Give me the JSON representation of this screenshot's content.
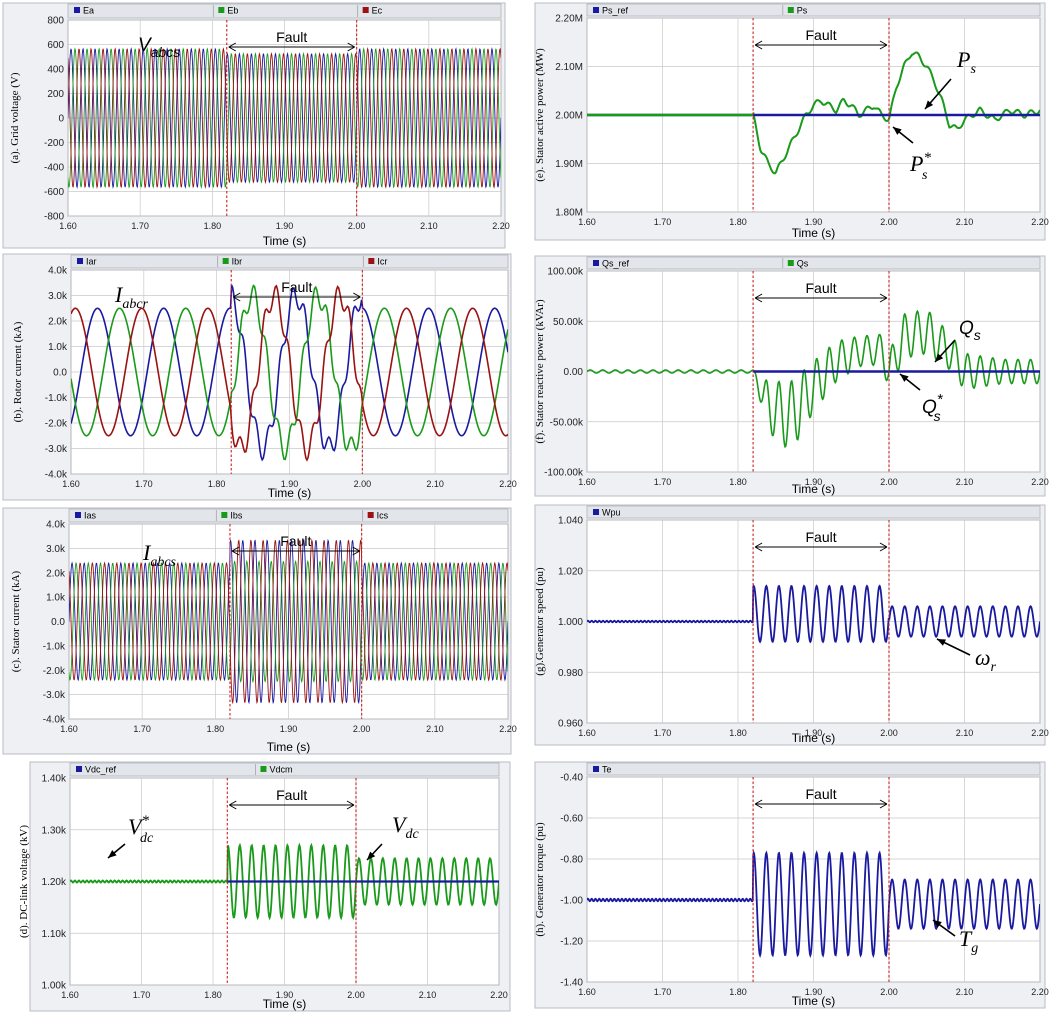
{
  "colors": {
    "blue": "#1a1aa0",
    "green": "#1a9a1a",
    "red": "#9a1212",
    "fault_line": "#cc2222",
    "grid": "#c8c8c8"
  },
  "common": {
    "fault_label": "Fault",
    "fault_start": 1.82,
    "fault_end": 2.0
  },
  "chart_data": [
    {
      "id": "a",
      "type": "line",
      "ylabel": "(a). Grid voltage (V)",
      "xlabel": "Time (s)",
      "legend": [
        "Ea",
        "Eb",
        "Ec"
      ],
      "ylim": [
        -800,
        800
      ],
      "yticks": [
        -800,
        -600,
        -400,
        -200,
        0,
        200,
        400,
        600,
        800
      ],
      "yticklabels": [
        "-800",
        "-600",
        "-400",
        "-200",
        "0",
        "200",
        "400",
        "600",
        "800"
      ],
      "xlim": [
        1.6,
        2.2
      ],
      "xticklabels": [
        "1.60",
        "1.70",
        "1.80",
        "1.90",
        "2.00",
        "2.10",
        "2.20"
      ],
      "fault": {
        "x1": 1.82,
        "x2": 2.0
      },
      "annotations": [
        {
          "main": "V",
          "sub": "abcs",
          "sup": ""
        }
      ],
      "series": [
        {
          "name": "Ea",
          "amplitude": 565,
          "freq_hz": 60,
          "phase_deg": 0
        },
        {
          "name": "Eb",
          "amplitude": 565,
          "freq_hz": 60,
          "phase_deg": -120
        },
        {
          "name": "Ec",
          "amplitude": 565,
          "freq_hz": 60,
          "phase_deg": 120
        }
      ],
      "fault_amplitude": 525
    },
    {
      "id": "b",
      "type": "line",
      "ylabel": "(b). Rotor current (kA)",
      "xlabel": "Time (s)",
      "legend": [
        "Iar",
        "Ibr",
        "Icr"
      ],
      "ylim": [
        -4,
        4
      ],
      "yticks": [
        -4,
        -3,
        -2,
        -1,
        0,
        1,
        2,
        3,
        4
      ],
      "yticklabels": [
        "-4.0k",
        "-3.0k",
        "-2.0k",
        "-1.0k",
        "0.0",
        "1.0k",
        "2.0k",
        "3.0k",
        "4.0k"
      ],
      "xlim": [
        1.6,
        2.2
      ],
      "xticklabels": [
        "1.60",
        "1.70",
        "1.80",
        "1.90",
        "2.00",
        "2.10",
        "2.20"
      ],
      "fault": {
        "x1": 1.82,
        "x2": 2.0
      },
      "annotations": [
        {
          "main": "I",
          "sub": "abcr",
          "sup": ""
        }
      ],
      "series": [
        {
          "name": "Iar",
          "amplitude": 2.5,
          "freq_hz": 11,
          "phase_deg": 90
        },
        {
          "name": "Ibr",
          "amplitude": 2.5,
          "freq_hz": 11,
          "phase_deg": -30
        },
        {
          "name": "Icr",
          "amplitude": 2.5,
          "freq_hz": 11,
          "phase_deg": 210
        }
      ],
      "fault_amplitude": 3.0
    },
    {
      "id": "c",
      "type": "line",
      "ylabel": "(c). Stator current (kA)",
      "xlabel": "Time (s)",
      "legend": [
        "Ias",
        "Ibs",
        "Ics"
      ],
      "ylim": [
        -4,
        4
      ],
      "yticks": [
        -4,
        -3,
        -2,
        -1,
        0,
        1,
        2,
        3,
        4
      ],
      "yticklabels": [
        "-4.0k",
        "-3.0k",
        "-2.0k",
        "-1.0k",
        "0.0",
        "1.0k",
        "2.0k",
        "3.0k",
        "4.0k"
      ],
      "xlim": [
        1.6,
        2.2
      ],
      "xticklabels": [
        "1.60",
        "1.70",
        "1.80",
        "1.90",
        "2.00",
        "2.10",
        "2.20"
      ],
      "fault": {
        "x1": 1.82,
        "x2": 2.0
      },
      "annotations": [
        {
          "main": "I",
          "sub": "abcs",
          "sup": ""
        }
      ],
      "series": [
        {
          "name": "Ias",
          "amplitude": 2.4,
          "freq_hz": 60,
          "phase_deg": 0
        },
        {
          "name": "Ibs",
          "amplitude": 2.4,
          "freq_hz": 60,
          "phase_deg": -120
        },
        {
          "name": "Ics",
          "amplitude": 2.4,
          "freq_hz": 60,
          "phase_deg": 120
        }
      ],
      "fault_amplitude": 2.9
    },
    {
      "id": "d",
      "type": "line",
      "ylabel": "(d). DC-link voltage (kV)",
      "xlabel": "Time (s)",
      "legend": [
        "Vdc_ref",
        "Vdcm"
      ],
      "ylim": [
        1.0,
        1.4
      ],
      "yticks": [
        1.0,
        1.1,
        1.2,
        1.3,
        1.4
      ],
      "yticklabels": [
        "1.00k",
        "1.10k",
        "1.20k",
        "1.30k",
        "1.40k"
      ],
      "xlim": [
        1.6,
        2.2
      ],
      "xticklabels": [
        "1.60",
        "1.70",
        "1.80",
        "1.90",
        "2.00",
        "2.10",
        "2.20"
      ],
      "fault": {
        "x1": 1.82,
        "x2": 2.0
      },
      "annotations": [
        {
          "main": "V",
          "sub": "dc",
          "sup": "*"
        },
        {
          "main": "V",
          "sub": "dc",
          "sup": ""
        }
      ],
      "reference": 1.2,
      "oscillation": {
        "freq_hz": 60,
        "fault_amp": 0.07,
        "post_amp": 0.045
      }
    },
    {
      "id": "e",
      "type": "line",
      "ylabel": "(e). Stator active power (MW)",
      "xlabel": "Time (s)",
      "legend": [
        "Ps_ref",
        "Ps"
      ],
      "ylim": [
        1.8,
        2.2
      ],
      "yticks": [
        1.8,
        1.9,
        2.0,
        2.1,
        2.2
      ],
      "yticklabels": [
        "1.80M",
        "1.90M",
        "2.00M",
        "2.10M",
        "2.20M"
      ],
      "xlim": [
        1.6,
        2.2
      ],
      "xticklabels": [
        "1.60",
        "1.70",
        "1.80",
        "1.90",
        "2.00",
        "2.10",
        "2.20"
      ],
      "fault": {
        "x1": 1.82,
        "x2": 2.0
      },
      "annotations": [
        {
          "main": "P",
          "sub": "s",
          "sup": ""
        },
        {
          "main": "P",
          "sub": "s",
          "sup": "*"
        }
      ],
      "reference": 2.0,
      "measured": {
        "x": [
          1.6,
          1.82,
          1.83,
          1.84,
          1.85,
          1.86,
          1.87,
          1.88,
          1.89,
          1.9,
          1.91,
          1.92,
          1.93,
          1.94,
          1.95,
          1.96,
          1.97,
          1.98,
          1.99,
          2.0,
          2.01,
          2.02,
          2.03,
          2.04,
          2.05,
          2.06,
          2.07,
          2.08,
          2.09,
          2.1,
          2.12,
          2.14,
          2.16,
          2.18,
          2.2
        ],
        "y": [
          2.0,
          2.0,
          1.93,
          1.9,
          1.88,
          1.91,
          1.94,
          1.97,
          2.0,
          2.02,
          2.03,
          2.02,
          2.01,
          2.03,
          2.02,
          2.0,
          2.01,
          2.02,
          2.0,
          1.99,
          2.06,
          2.1,
          2.13,
          2.12,
          2.1,
          2.07,
          2.03,
          1.98,
          1.97,
          1.99,
          2.01,
          1.99,
          2.01,
          2.0,
          2.01
        ]
      }
    },
    {
      "id": "f",
      "type": "line",
      "ylabel": "(f). Stator reactive power (kVAr)",
      "xlabel": "Time (s)",
      "legend": [
        "Qs_ref",
        "Qs"
      ],
      "ylim": [
        -100,
        100
      ],
      "yticks": [
        -100,
        -50,
        0,
        50,
        100
      ],
      "yticklabels": [
        "-100.00k",
        "-50.00k",
        "0.00",
        "50.00k",
        "100.00k"
      ],
      "xlim": [
        1.6,
        2.2
      ],
      "xticklabels": [
        "1.60",
        "1.70",
        "1.80",
        "1.90",
        "2.00",
        "2.10",
        "2.20"
      ],
      "fault": {
        "x1": 1.82,
        "x2": 2.0
      },
      "annotations": [
        {
          "main": "Q",
          "sub": "s",
          "sup": ""
        },
        {
          "main": "Q",
          "sub": "s",
          "sup": "*"
        }
      ],
      "reference": 0,
      "envelope": {
        "x": [
          1.6,
          1.82,
          1.84,
          1.87,
          1.9,
          1.93,
          1.96,
          1.99,
          2.0,
          2.02,
          2.05,
          2.08,
          2.1,
          2.15,
          2.2
        ],
        "center": [
          0,
          0,
          -35,
          -45,
          -15,
          10,
          20,
          22,
          0,
          35,
          40,
          20,
          0,
          0,
          0
        ],
        "amplitude": [
          1.5,
          1.5,
          25,
          35,
          25,
          20,
          15,
          15,
          18,
          22,
          22,
          18,
          18,
          12,
          12
        ]
      },
      "osc_freq_hz": 60
    },
    {
      "id": "g",
      "type": "line",
      "ylabel": "(g).Generator speed (pu)",
      "xlabel": "Time (s)",
      "legend": [
        "Wpu"
      ],
      "ylim": [
        0.96,
        1.04
      ],
      "yticks": [
        0.96,
        0.98,
        1.0,
        1.02,
        1.04
      ],
      "yticklabels": [
        "0.960",
        "0.980",
        "1.000",
        "1.020",
        "1.040"
      ],
      "xlim": [
        1.6,
        2.2
      ],
      "xticklabels": [
        "1.60",
        "1.70",
        "1.80",
        "1.90",
        "2.00",
        "2.10",
        "2.20"
      ],
      "fault": {
        "x1": 1.82,
        "x2": 2.0
      },
      "annotations": [
        {
          "main": "ω",
          "sub": "r",
          "sup": ""
        }
      ],
      "steady": 1.0,
      "oscillation": {
        "freq_hz": 60,
        "fault_amp": 0.011,
        "fault_offset": 0.003,
        "post_amp": 0.006,
        "post_offset": 0.0
      }
    },
    {
      "id": "h",
      "type": "line",
      "ylabel": "(h). Generator torque (pu)",
      "xlabel": "Time (s)",
      "legend": [
        "Te"
      ],
      "ylim": [
        -1.4,
        -0.4
      ],
      "yticks": [
        -1.4,
        -1.2,
        -1.0,
        -0.8,
        -0.6,
        -0.4
      ],
      "yticklabels": [
        "-1.40",
        "-1.20",
        "-1.00",
        "-0.80",
        "-0.60",
        "-0.40"
      ],
      "xlim": [
        1.6,
        2.2
      ],
      "xticklabels": [
        "1.60",
        "1.70",
        "1.80",
        "1.90",
        "2.00",
        "2.10",
        "2.20"
      ],
      "fault": {
        "x1": 1.82,
        "x2": 2.0
      },
      "annotations": [
        {
          "main": "T",
          "sub": "g",
          "sup": ""
        }
      ],
      "steady": -1.0,
      "oscillation": {
        "freq_hz": 60,
        "fault_amp": 0.25,
        "fault_offset": -0.02,
        "post_amp": 0.12,
        "post_offset": -0.02
      }
    }
  ]
}
